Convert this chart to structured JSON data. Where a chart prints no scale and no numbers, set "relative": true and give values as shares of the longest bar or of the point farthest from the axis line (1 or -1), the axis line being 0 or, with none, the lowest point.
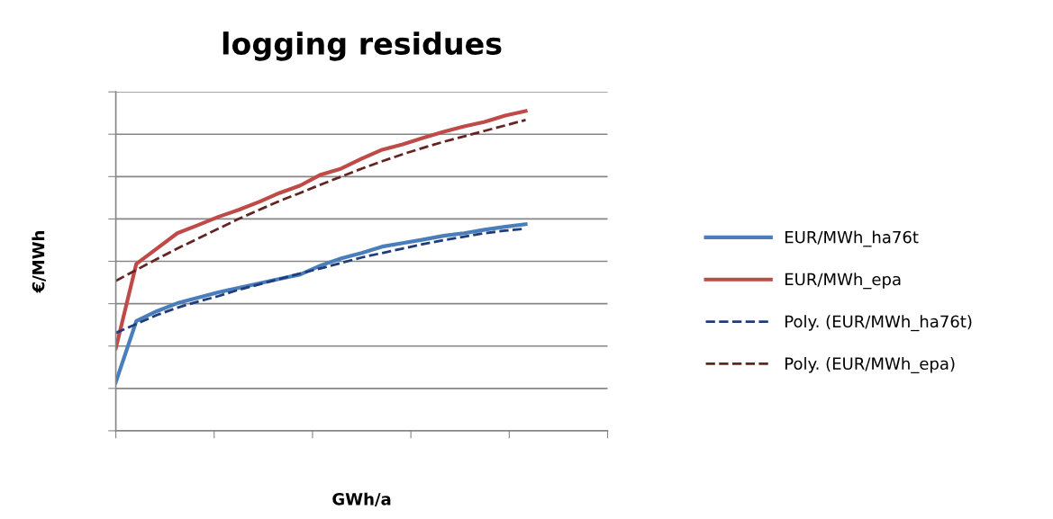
{
  "chart_data": {
    "type": "line",
    "title": "logging residues",
    "xlabel": "GWh/a",
    "ylabel": "€/MWh",
    "relative": true,
    "grid": "y",
    "legend": "right",
    "marker": "none",
    "categories": [
      null,
      null,
      null,
      null,
      null,
      null,
      null,
      null,
      null,
      null,
      null,
      null,
      null,
      null,
      null,
      null,
      null,
      null,
      null,
      null,
      null,
      null,
      null,
      null,
      null
    ],
    "series": [
      {
        "name": "EUR/MWh_ha76t",
        "color": "#4a7ebb",
        "line_style": "solid",
        "values": [
          0.152,
          0.343,
          0.374,
          0.399,
          0.416,
          0.433,
          0.447,
          0.461,
          0.475,
          0.489,
          0.517,
          0.539,
          0.556,
          0.576,
          0.587,
          0.598,
          0.61,
          0.618,
          0.629,
          0.638,
          0.646,
          null,
          null,
          null,
          null
        ]
      },
      {
        "name": "EUR/MWh_epa",
        "color": "#be4b48",
        "line_style": "solid",
        "values": [
          0.258,
          0.522,
          0.57,
          0.618,
          0.643,
          0.669,
          0.691,
          0.716,
          0.744,
          0.767,
          0.801,
          0.82,
          0.851,
          0.879,
          0.896,
          0.916,
          0.935,
          0.952,
          0.966,
          0.986,
          1,
          null,
          null,
          null,
          null
        ]
      },
      {
        "name": "Poly. (EUR/MWh_ha76t)",
        "color": "#1f3d7a",
        "line_style": "dashed",
        "values": [
          0.306,
          0.334,
          0.362,
          0.385,
          0.404,
          0.421,
          0.441,
          0.458,
          0.475,
          0.492,
          0.508,
          0.525,
          0.542,
          0.556,
          0.57,
          0.584,
          0.596,
          0.607,
          0.618,
          0.626,
          0.632,
          null,
          null,
          null,
          null
        ]
      },
      {
        "name": "Poly. (EUR/MWh_epa)",
        "color": "#632523",
        "line_style": "dashed",
        "values": [
          0.469,
          0.503,
          0.537,
          0.57,
          0.601,
          0.632,
          0.663,
          0.691,
          0.719,
          0.744,
          0.77,
          0.795,
          0.82,
          0.843,
          0.865,
          0.885,
          0.904,
          0.921,
          0.938,
          0.955,
          0.972,
          null,
          null,
          null,
          null
        ]
      }
    ]
  }
}
